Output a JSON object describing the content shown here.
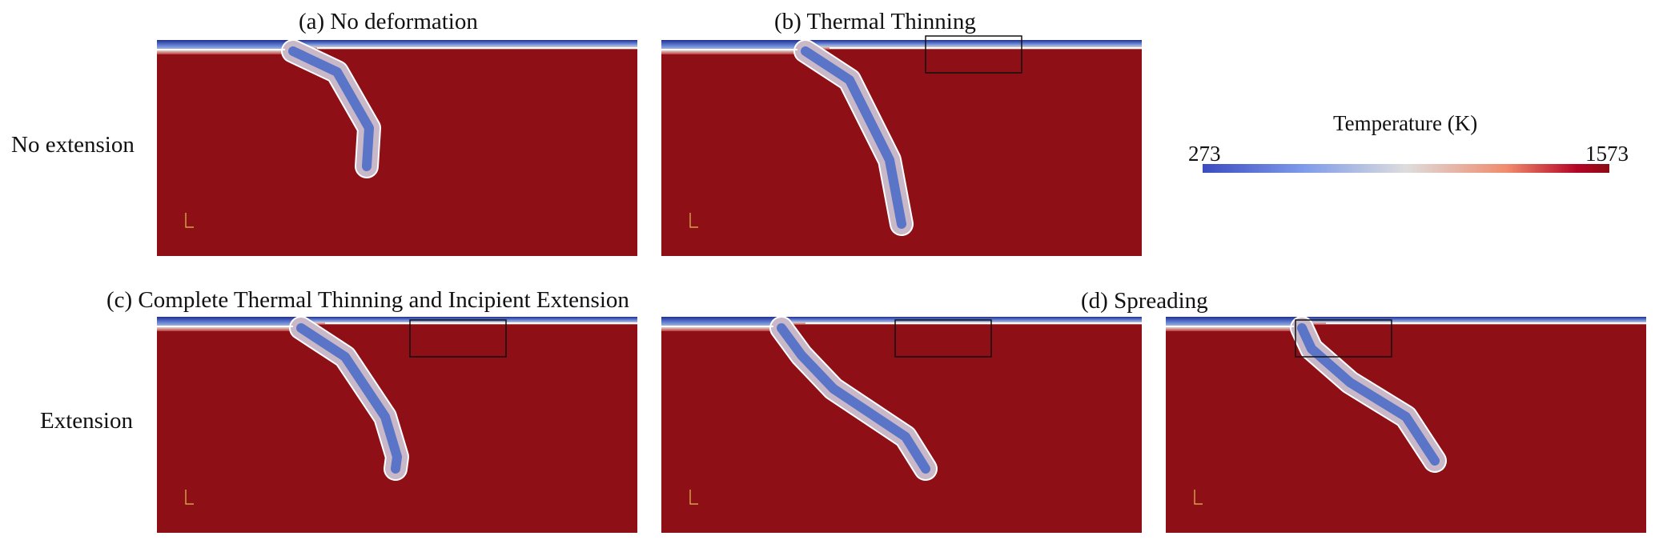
{
  "figure": {
    "row_labels": [
      "No extension",
      "Extension"
    ],
    "panels": [
      {
        "id": "a",
        "title": "(a) No deformation",
        "highlight_box": false,
        "stage": 0
      },
      {
        "id": "b",
        "title": "(b) Thermal Thinning",
        "highlight_box": true,
        "stage": 1
      },
      {
        "id": "c",
        "title": "(c) Complete Thermal Thinning and Incipient Extension",
        "highlight_box": true,
        "stage": 2
      },
      {
        "id": "d1",
        "title": "",
        "highlight_box": true,
        "stage": 3
      },
      {
        "id": "d2",
        "title": "(d) Spreading",
        "highlight_box": true,
        "stage": 4
      }
    ],
    "colorbar": {
      "title": "Temperature (K)",
      "min_label": "273",
      "max_label": "1573",
      "colors": [
        "#3b4cc0",
        "#7f9bea",
        "#dddddd",
        "#f08a6c",
        "#b40426",
        "#8b0c13"
      ]
    },
    "colors": {
      "mantle": "#8e0f16",
      "cold_plate": "#2b3f9e",
      "isotherm": "#ffffff",
      "box": "#111111"
    }
  }
}
